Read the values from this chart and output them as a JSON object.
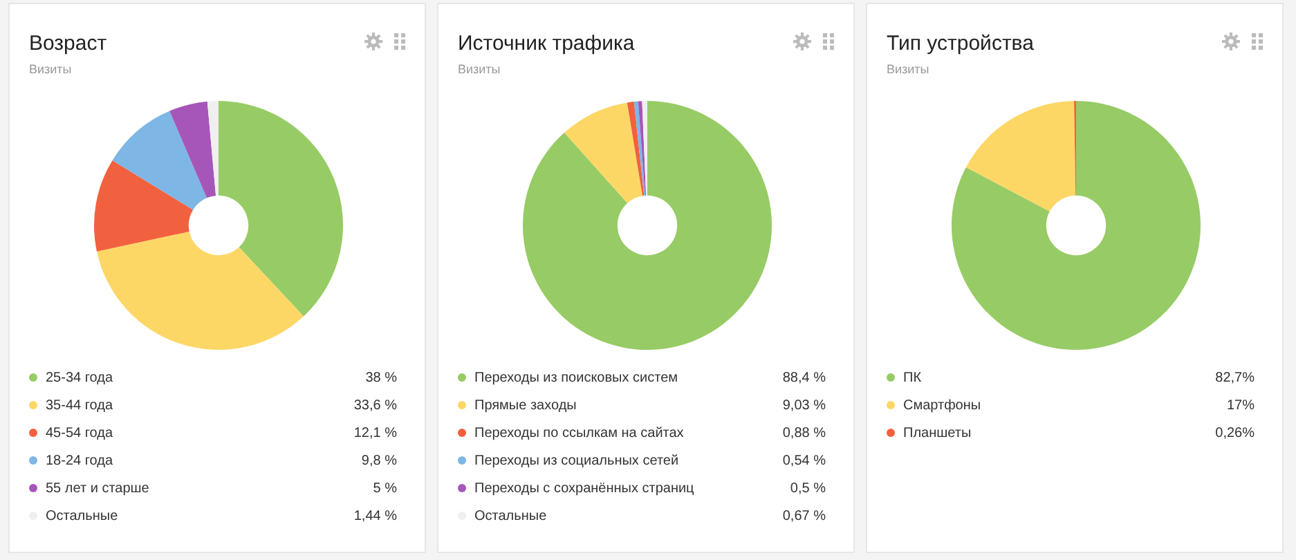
{
  "chart_data": [
    {
      "type": "donut",
      "title": "Возраст",
      "subtitle": "Визиты",
      "legend": "bottom",
      "categories": [
        "25-34 года",
        "35-44 года",
        "45-54 года",
        "18-24 года",
        "55 лет и старше",
        "Остальные"
      ],
      "values": [
        38,
        33.6,
        12.1,
        9.8,
        5,
        1.44
      ],
      "value_labels": [
        "38 %",
        "33,6 %",
        "12,1 %",
        "9,8 %",
        "5 %",
        "1,44 %"
      ],
      "colors": [
        "#97cb65",
        "#fdd766",
        "#f2613f",
        "#7eb6e6",
        "#a656b8",
        "#efefef"
      ]
    },
    {
      "type": "donut",
      "title": "Источник трафика",
      "subtitle": "Визиты",
      "legend": "bottom",
      "categories": [
        "Переходы из поисковых систем",
        "Прямые заходы",
        "Переходы по ссылкам на сайтах",
        "Переходы из социальных сетей",
        "Переходы с сохранённых страниц",
        "Остальные"
      ],
      "values": [
        88.4,
        9.03,
        0.88,
        0.54,
        0.5,
        0.67
      ],
      "value_labels": [
        "88,4 %",
        "9,03 %",
        "0,88 %",
        "0,54 %",
        "0,5 %",
        "0,67 %"
      ],
      "colors": [
        "#97cb65",
        "#fdd766",
        "#f2613f",
        "#7eb6e6",
        "#a656b8",
        "#efefef"
      ]
    },
    {
      "type": "donut",
      "title": "Тип устройства",
      "subtitle": "Визиты",
      "legend": "bottom",
      "categories": [
        "ПК",
        "Смартфоны",
        "Планшеты"
      ],
      "values": [
        82.7,
        17,
        0.26
      ],
      "value_labels": [
        "82,7%",
        "17%",
        "0,26%"
      ],
      "colors": [
        "#97cb65",
        "#fdd766",
        "#f2613f"
      ]
    }
  ]
}
